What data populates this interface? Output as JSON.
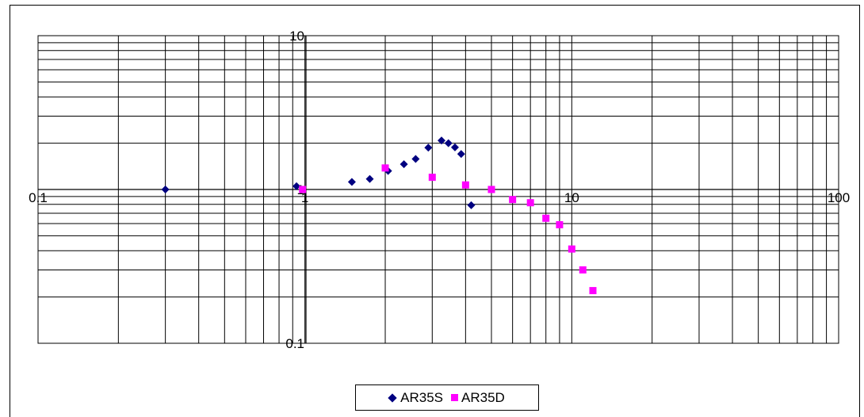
{
  "chart_data": {
    "type": "scatter",
    "title": "",
    "xlabel": "",
    "ylabel": "",
    "x_scale": "log",
    "y_scale": "log",
    "xlim": [
      0.1,
      100
    ],
    "ylim": [
      0.1,
      10
    ],
    "grid": true,
    "x_ticks": [
      {
        "value": 0.1,
        "label": "0.1"
      },
      {
        "value": 1,
        "label": "1"
      },
      {
        "value": 10,
        "label": "10"
      },
      {
        "value": 100,
        "label": "100"
      }
    ],
    "y_ticks": [
      {
        "value": 10,
        "label": "10"
      },
      {
        "value": 1,
        "label": "1"
      },
      {
        "value": 0.1,
        "label": "0.1"
      }
    ],
    "legend": {
      "position": "bottom"
    },
    "series": [
      {
        "name": "AR35S",
        "marker": "diamond",
        "color": "#000080",
        "x": [
          0.3,
          0.93,
          1.5,
          1.75,
          2.05,
          2.35,
          2.6,
          2.9,
          3.25,
          3.45,
          3.65,
          3.85,
          4.2
        ],
        "y": [
          1.0,
          1.05,
          1.12,
          1.17,
          1.32,
          1.46,
          1.58,
          1.87,
          2.08,
          2.0,
          1.88,
          1.7,
          0.79
        ]
      },
      {
        "name": "AR35D",
        "marker": "square",
        "color": "#ff00ff",
        "x": [
          0.98,
          2.0,
          3.0,
          4.0,
          5.0,
          6.0,
          7.0,
          8.0,
          9.0,
          10.0,
          11.0,
          12.0
        ],
        "y": [
          1.0,
          1.38,
          1.2,
          1.07,
          1.0,
          0.86,
          0.82,
          0.65,
          0.59,
          0.41,
          0.3,
          0.22
        ]
      }
    ]
  }
}
